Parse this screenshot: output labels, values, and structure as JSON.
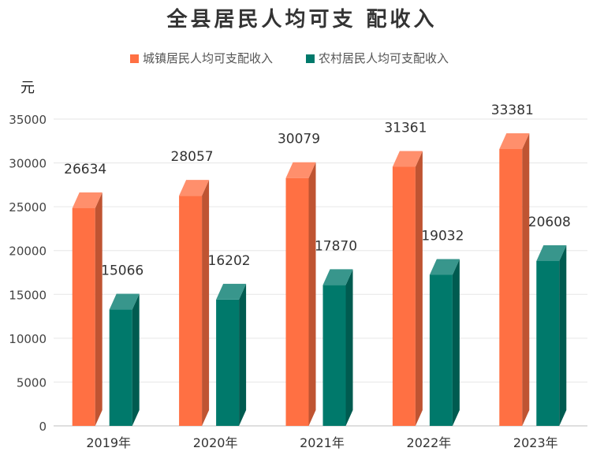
{
  "chart_data": {
    "type": "bar",
    "title": "全县居民人均可支 配收入",
    "ylabel": "元",
    "categories": [
      "2019年",
      "2020年",
      "2021年",
      "2022年",
      "2023年"
    ],
    "series": [
      {
        "name": "城镇居民人均可支配收入",
        "values": [
          26634,
          28057,
          30079,
          31361,
          33381
        ],
        "color": "#FF7043"
      },
      {
        "name": "农村居民人均可支配收入",
        "values": [
          15066,
          16202,
          17870,
          19032,
          20608
        ],
        "color": "#00796B"
      }
    ],
    "ylim": [
      0,
      35000
    ],
    "yticks": [
      0,
      5000,
      10000,
      15000,
      20000,
      25000,
      30000,
      35000
    ],
    "grid": true,
    "legend": "top"
  }
}
